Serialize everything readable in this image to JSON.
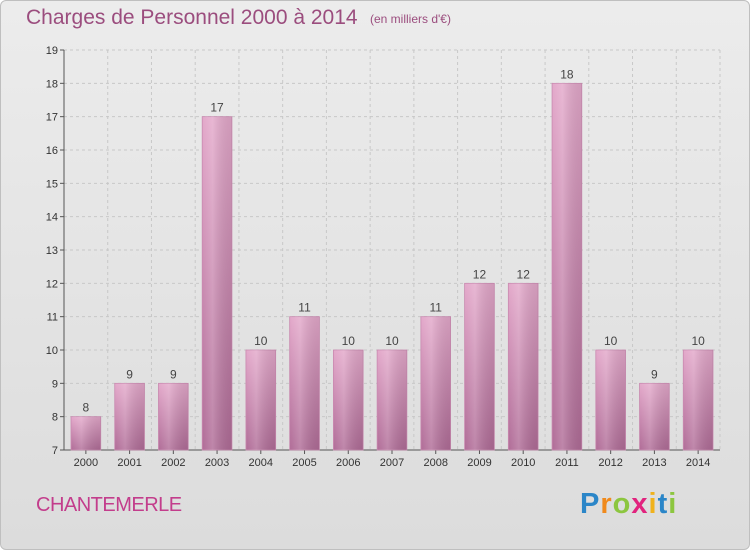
{
  "title": "Charges de Personnel 2000 à 2014",
  "subtitle": "(en milliers d'€)",
  "location": "CHANTEMERLE",
  "logo": {
    "text": "Proxiti",
    "letters": [
      {
        "ch": "P",
        "color": "#2b86c8"
      },
      {
        "ch": "r",
        "color": "#f08a1c"
      },
      {
        "ch": "o",
        "color": "#8cc63f"
      },
      {
        "ch": "x",
        "color": "#e1237e"
      },
      {
        "ch": "i",
        "color": "#f0b21c"
      },
      {
        "ch": "t",
        "color": "#2b86c8"
      },
      {
        "ch": "i",
        "color": "#8cc63f"
      }
    ]
  },
  "colors": {
    "bar_top": "#e3a8ca",
    "bar_bottom": "#b06c97",
    "text_accent": "#9b4d7e"
  },
  "chart_data": {
    "type": "bar",
    "title": "Charges de Personnel 2000 à 2014",
    "subtitle": "(en milliers d'€)",
    "categories": [
      "2000",
      "2001",
      "2002",
      "2003",
      "2004",
      "2005",
      "2006",
      "2007",
      "2008",
      "2009",
      "2010",
      "2011",
      "2012",
      "2013",
      "2014"
    ],
    "values": [
      8,
      9,
      9,
      17,
      10,
      11,
      10,
      10,
      11,
      12,
      12,
      18,
      10,
      9,
      10
    ],
    "ylim": [
      7,
      19
    ],
    "yticks": [
      7,
      8,
      9,
      10,
      11,
      12,
      13,
      14,
      15,
      16,
      17,
      18,
      19
    ],
    "grid": true,
    "data_labels": true
  }
}
